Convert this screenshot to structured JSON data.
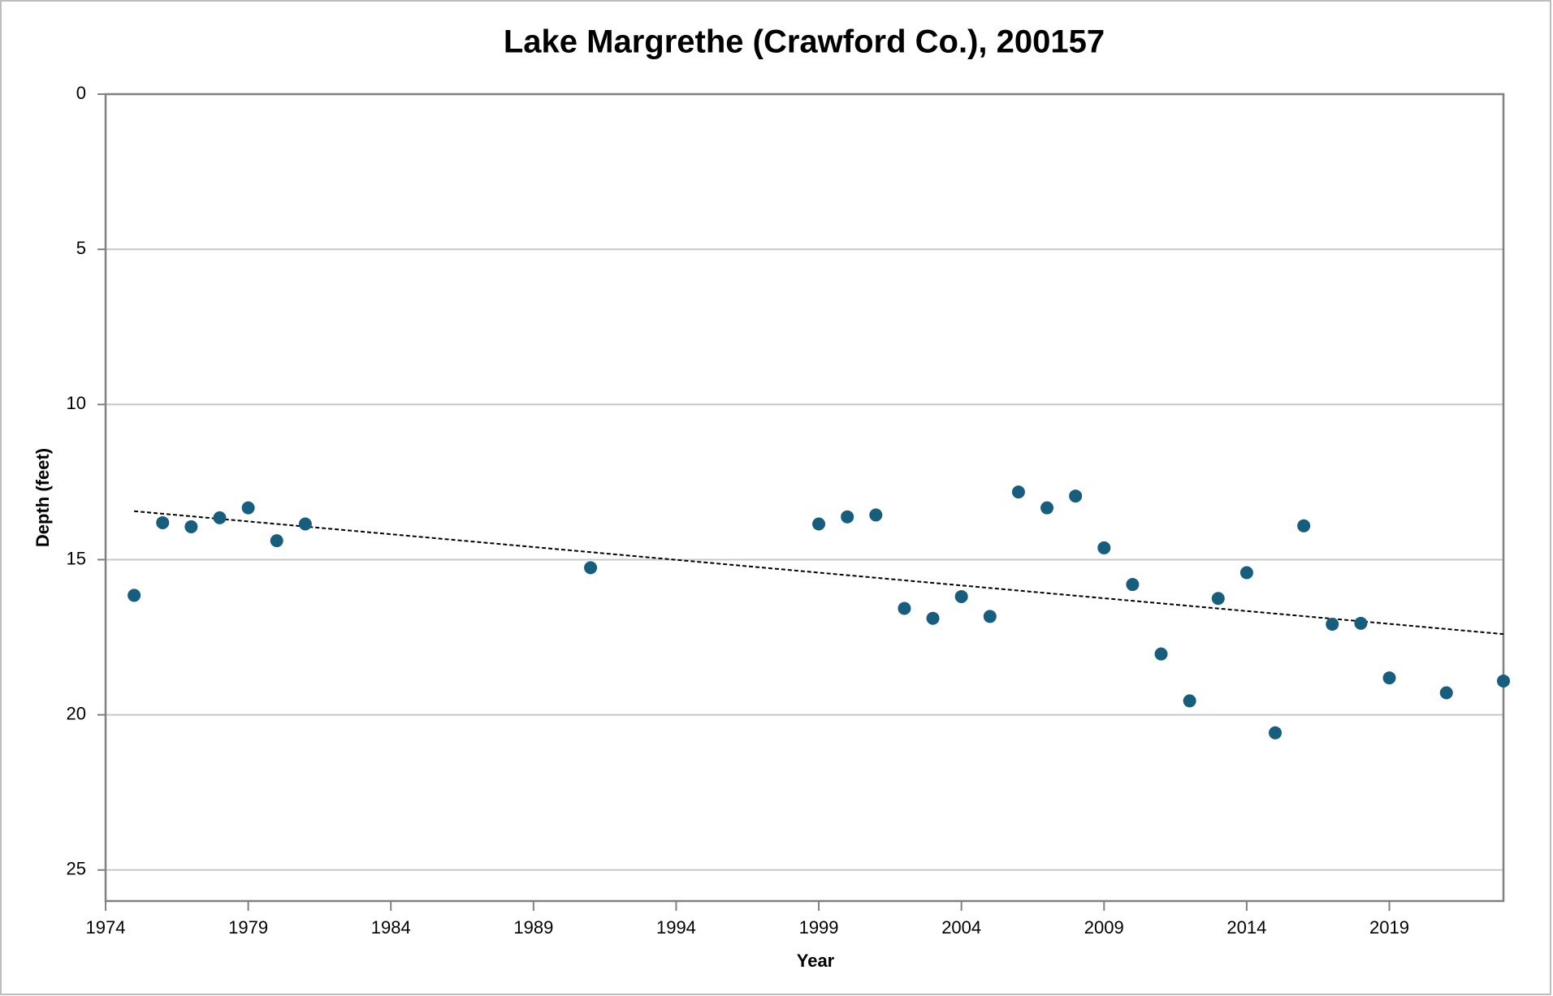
{
  "chart_data": {
    "type": "scatter",
    "title": "Lake Margrethe (Crawford Co.), 200157",
    "xlabel": "Year",
    "ylabel": "Depth (feet)",
    "series": [
      {
        "color": "#175d7e",
        "x": [
          1975,
          1976,
          1977,
          1978,
          1979,
          1980,
          1981,
          1991,
          1999,
          2000,
          2001,
          2002,
          2003,
          2004,
          2005,
          2006,
          2007,
          2008,
          2009,
          2010,
          2011,
          2012,
          2013,
          2014,
          2015,
          2016,
          2017,
          2018,
          2019,
          2021,
          2023
        ],
        "values": [
          16.15,
          13.81,
          13.94,
          13.65,
          13.33,
          14.39,
          13.85,
          15.26,
          13.85,
          13.62,
          13.56,
          16.57,
          16.89,
          16.19,
          16.83,
          12.82,
          13.33,
          12.95,
          14.62,
          15.8,
          18.04,
          19.55,
          16.25,
          15.42,
          20.58,
          13.91,
          17.08,
          17.05,
          18.81,
          19.29,
          18.91
        ]
      }
    ],
    "xlim": [
      1974,
      2023
    ],
    "xticks": [
      1974,
      1979,
      1984,
      1989,
      1994,
      1999,
      2004,
      2009,
      2014,
      2019
    ],
    "ylim": [
      0,
      26
    ],
    "yticks": [
      0,
      5,
      10,
      15,
      20,
      25
    ],
    "y_inverted": true,
    "grid": true,
    "trendline": true
  }
}
